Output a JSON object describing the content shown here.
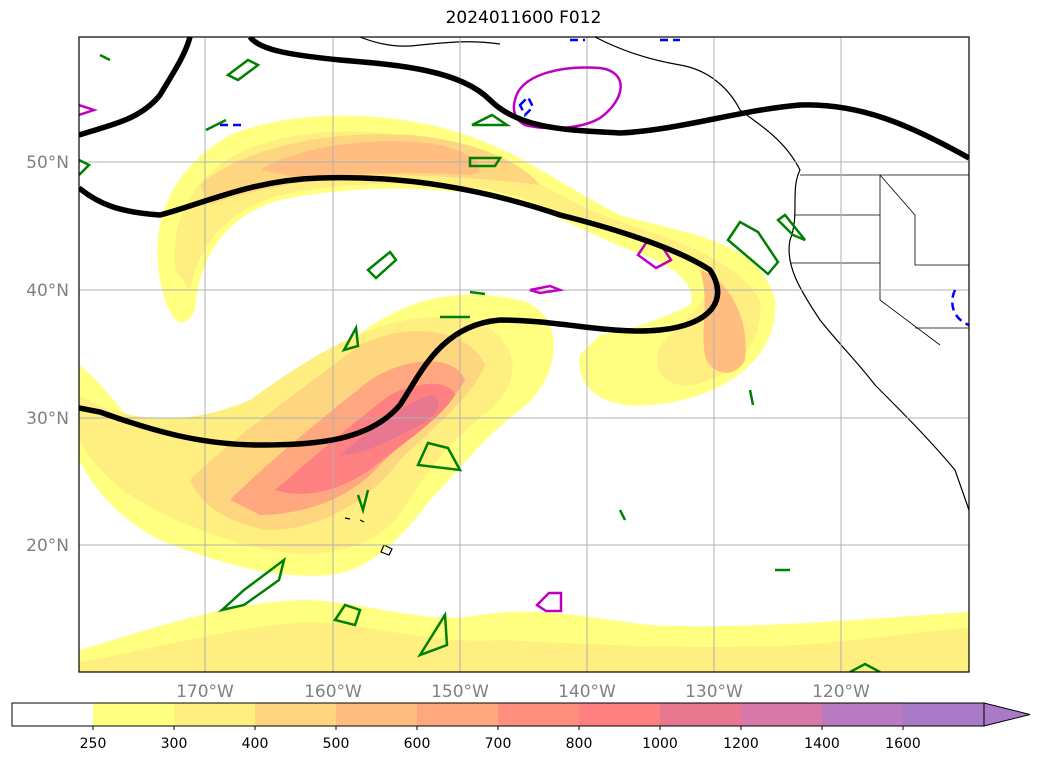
{
  "title": "2024011600 F012",
  "map": {
    "lat_labels": [
      "50°N",
      "40°N",
      "30°N",
      "20°N"
    ],
    "lon_labels": [
      "170°W",
      "160°W",
      "150°W",
      "140°W",
      "130°W",
      "120°W"
    ]
  },
  "colorbar": {
    "ticks": [
      "250",
      "300",
      "400",
      "500",
      "600",
      "700",
      "800",
      "1000",
      "1200",
      "1400",
      "1600"
    ],
    "colors": [
      "#ffffff",
      "#ffff80",
      "#ffee80",
      "#ffd680",
      "#ffbe80",
      "#ffa880",
      "#ff9080",
      "#ff8080",
      "#e87890",
      "#d878a8",
      "#b87ac0",
      "#a87ac8"
    ],
    "extend": "max"
  },
  "colors": {
    "jet_contour": "#000000",
    "positive_contour": "#008000",
    "negative_contour": "#0000ff",
    "high_contour": "#c000c0",
    "coastline": "#000000",
    "grid": "#b0b0b0"
  }
}
